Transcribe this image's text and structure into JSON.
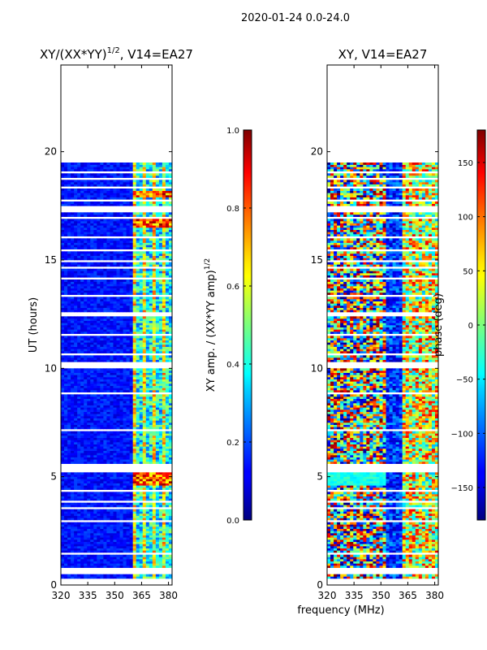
{
  "suptitle": "2020-01-24 0.0-24.0",
  "chart_data": [
    {
      "type": "heatmap",
      "title": "XY/(XX*YY)1/2, V14=EA27",
      "title_main": "XY/(XX*YY)",
      "title_exp": "1/2",
      "title_tail": ", V14=EA27",
      "xlabel": "",
      "ylabel": "UT (hours)",
      "xlim": [
        320,
        382
      ],
      "ylim": [
        0,
        24
      ],
      "xticks": [
        "320",
        "335",
        "350",
        "365",
        "380"
      ],
      "xtick_values": [
        320,
        335,
        350,
        365,
        380
      ],
      "yticks": [
        "0",
        "5",
        "10",
        "15",
        "20"
      ],
      "ytick_values": [
        0,
        5,
        10,
        15,
        20
      ],
      "data_extent_hours": [
        0.3,
        19.5
      ],
      "rfi_band_mhz": [
        360,
        382
      ],
      "strong_rfi_hours": [
        [
          4.5,
          5.2
        ],
        [
          16.5,
          16.8
        ],
        [
          17.9,
          18.1
        ]
      ],
      "colorbar": {
        "label": "XY amp. / (XX*YY amp)1/2",
        "label_main": "XY amp. / (XX*YY amp)",
        "label_exp": "1/2",
        "range": [
          0.0,
          1.0
        ],
        "ticks": [
          "0.0",
          "0.2",
          "0.4",
          "0.6",
          "0.8",
          "1.0"
        ],
        "tick_values": [
          0.0,
          0.2,
          0.4,
          0.6,
          0.8,
          1.0
        ]
      }
    },
    {
      "type": "heatmap",
      "title": "XY, V14=EA27",
      "xlabel": "frequency (MHz)",
      "ylabel": "",
      "xlim": [
        320,
        382
      ],
      "ylim": [
        0,
        24
      ],
      "xticks": [
        "320",
        "335",
        "350",
        "365",
        "380"
      ],
      "xtick_values": [
        320,
        335,
        350,
        365,
        380
      ],
      "yticks": [
        "0",
        "5",
        "10",
        "15",
        "20"
      ],
      "ytick_values": [
        0,
        5,
        10,
        15,
        20
      ],
      "data_extent_hours": [
        0.3,
        19.5
      ],
      "colorbar": {
        "label": "phase (deg)",
        "range": [
          -180,
          180
        ],
        "ticks": [
          "−150",
          "−100",
          "−50",
          "0",
          "50",
          "100",
          "150"
        ],
        "tick_values": [
          -150,
          -100,
          -50,
          0,
          50,
          100,
          150
        ]
      }
    }
  ]
}
